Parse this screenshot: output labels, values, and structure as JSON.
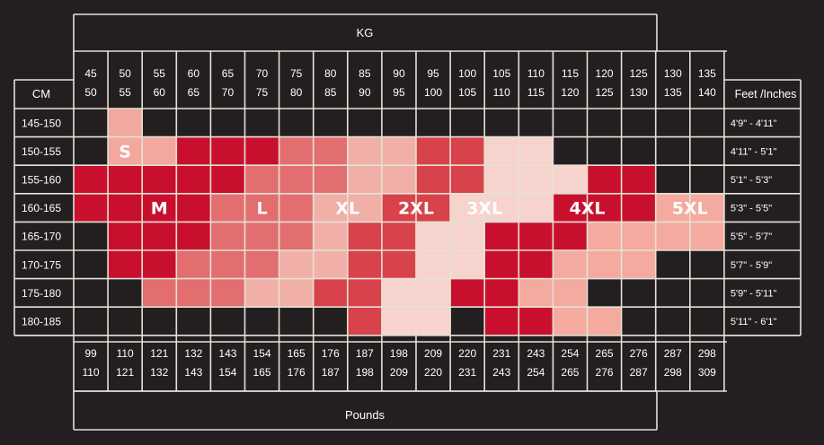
{
  "chart_data": {
    "type": "heatmap",
    "kg_title": "KG",
    "pounds_title": "Pounds",
    "cm_title": "CM",
    "feet_title": "Feet /Inches",
    "kg_columns": [
      [
        "45",
        "50"
      ],
      [
        "50",
        "55"
      ],
      [
        "55",
        "60"
      ],
      [
        "60",
        "65"
      ],
      [
        "65",
        "70"
      ],
      [
        "70",
        "75"
      ],
      [
        "75",
        "80"
      ],
      [
        "80",
        "85"
      ],
      [
        "85",
        "90"
      ],
      [
        "90",
        "95"
      ],
      [
        "95",
        "100"
      ],
      [
        "100",
        "105"
      ],
      [
        "105",
        "110"
      ],
      [
        "110",
        "115"
      ],
      [
        "115",
        "120"
      ],
      [
        "120",
        "125"
      ],
      [
        "125",
        "130"
      ],
      [
        "130",
        "135"
      ],
      [
        "135",
        "140"
      ]
    ],
    "pound_columns": [
      [
        "99",
        "110"
      ],
      [
        "110",
        "121"
      ],
      [
        "121",
        "132"
      ],
      [
        "132",
        "143"
      ],
      [
        "143",
        "154"
      ],
      [
        "154",
        "165"
      ],
      [
        "165",
        "176"
      ],
      [
        "176",
        "187"
      ],
      [
        "187",
        "198"
      ],
      [
        "198",
        "209"
      ],
      [
        "209",
        "220"
      ],
      [
        "220",
        "231"
      ],
      [
        "231",
        "243"
      ],
      [
        "243",
        "254"
      ],
      [
        "254",
        "265"
      ],
      [
        "265",
        "276"
      ],
      [
        "276",
        "287"
      ],
      [
        "287",
        "298"
      ],
      [
        "298",
        "309"
      ]
    ],
    "cm_rows": [
      "145-150",
      "150-155",
      "155-160",
      "160-165",
      "165-170",
      "170-175",
      "175-180",
      "180-185"
    ],
    "feet_rows": [
      "4'9\" - 4'11\"",
      "4'11\" - 5'1\"",
      "5'1\" - 5'3\"",
      "5'3\" - 5'5\"",
      "5'5\" - 5'7\"",
      "5'7\" - 5'9\"",
      "5'9\" - 5'11\"",
      "5'11\" - 6'1\""
    ],
    "size_names": [
      "S",
      "M",
      "L",
      "XL",
      "2XL",
      "3XL",
      "4XL",
      "5XL"
    ],
    "size_colors": [
      "#f2a89d",
      "#c8102e",
      "#e36e70",
      "#f0b0a8",
      "#d8424a",
      "#f6d3cc",
      "#c8102e",
      "#f4aa9f"
    ],
    "grid": [
      [
        null,
        0,
        null,
        null,
        null,
        null,
        null,
        null,
        null,
        null,
        null,
        null,
        null,
        null,
        null,
        null,
        null,
        null,
        null
      ],
      [
        null,
        0,
        0,
        1,
        1,
        1,
        2,
        2,
        3,
        3,
        4,
        4,
        5,
        5,
        null,
        null,
        null,
        null,
        null
      ],
      [
        1,
        1,
        1,
        1,
        1,
        2,
        2,
        2,
        3,
        3,
        4,
        4,
        5,
        5,
        5,
        6,
        6,
        null,
        null
      ],
      [
        1,
        1,
        1,
        1,
        2,
        2,
        2,
        3,
        3,
        4,
        4,
        5,
        5,
        5,
        6,
        6,
        6,
        7,
        7
      ],
      [
        null,
        1,
        1,
        1,
        2,
        2,
        2,
        3,
        4,
        4,
        5,
        5,
        6,
        6,
        6,
        7,
        7,
        7,
        7
      ],
      [
        null,
        1,
        1,
        2,
        2,
        2,
        3,
        3,
        4,
        4,
        5,
        5,
        6,
        6,
        7,
        7,
        7,
        null,
        null
      ],
      [
        null,
        null,
        2,
        2,
        2,
        3,
        3,
        4,
        4,
        5,
        5,
        6,
        6,
        7,
        7,
        null,
        null,
        null,
        null
      ],
      [
        null,
        null,
        null,
        null,
        null,
        null,
        null,
        null,
        4,
        5,
        5,
        null,
        6,
        6,
        7,
        7,
        null,
        null,
        null
      ]
    ],
    "size_label_cells": [
      {
        "size": 0,
        "row": 1,
        "col": 1
      },
      {
        "size": 1,
        "row": 3,
        "col": 2
      },
      {
        "size": 2,
        "row": 3,
        "col": 5
      },
      {
        "size": 3,
        "row": 3,
        "col": 7.5
      },
      {
        "size": 4,
        "row": 3,
        "col": 9.5
      },
      {
        "size": 5,
        "row": 3,
        "col": 11.5
      },
      {
        "size": 6,
        "row": 3,
        "col": 14.5
      },
      {
        "size": 7,
        "row": 3,
        "col": 17.5
      }
    ]
  }
}
